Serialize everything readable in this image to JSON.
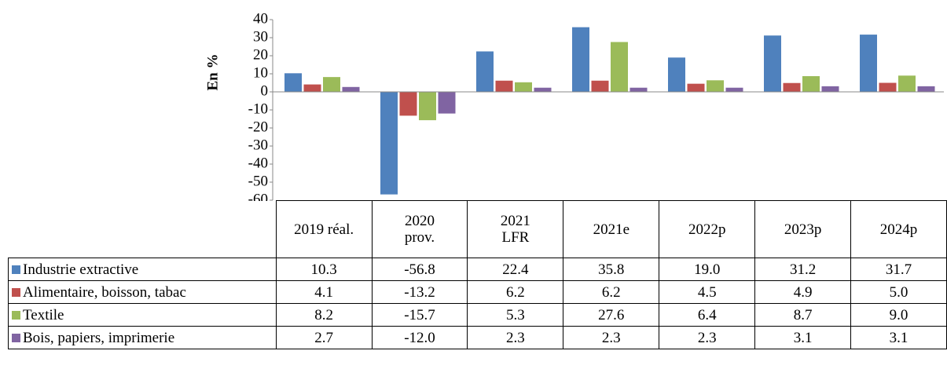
{
  "chart_data": {
    "type": "bar",
    "y_label": "En %",
    "categories": [
      "2019 réal.",
      "2020\nprov.",
      "2021\nLFR",
      "2021e",
      "2022p",
      "2023p",
      "2024p"
    ],
    "series": [
      {
        "name": "Industrie extractive",
        "color": "#4f81bd",
        "values": [
          10.3,
          -56.8,
          22.4,
          35.8,
          19.0,
          31.2,
          31.7
        ],
        "value_labels": [
          "10.3",
          "-56.8",
          "22.4",
          "35.8",
          "19.0",
          "31.2",
          "31.7"
        ]
      },
      {
        "name": "Alimentaire, boisson, tabac",
        "color": "#c0504d",
        "values": [
          4.1,
          -13.2,
          6.2,
          6.2,
          4.5,
          4.9,
          5.0
        ],
        "value_labels": [
          "4.1",
          "-13.2",
          "6.2",
          "6.2",
          "4.5",
          "4.9",
          "5.0"
        ]
      },
      {
        "name": "Textile",
        "color": "#9bbb59",
        "values": [
          8.2,
          -15.7,
          5.3,
          27.6,
          6.4,
          8.7,
          9.0
        ],
        "value_labels": [
          "8.2",
          "-15.7",
          "5.3",
          "27.6",
          "6.4",
          "8.7",
          "9.0"
        ]
      },
      {
        "name": "Bois, papiers, imprimerie",
        "color": "#8064a2",
        "values": [
          2.7,
          -12.0,
          2.3,
          2.3,
          2.3,
          3.1,
          3.1
        ],
        "value_labels": [
          "2.7",
          "-12.0",
          "2.3",
          "2.3",
          "2.3",
          "3.1",
          "3.1"
        ]
      }
    ],
    "ylim": [
      -60,
      40
    ],
    "yticks": [
      -60,
      -50,
      -40,
      -30,
      -20,
      -10,
      0,
      10,
      20,
      30,
      40
    ]
  }
}
